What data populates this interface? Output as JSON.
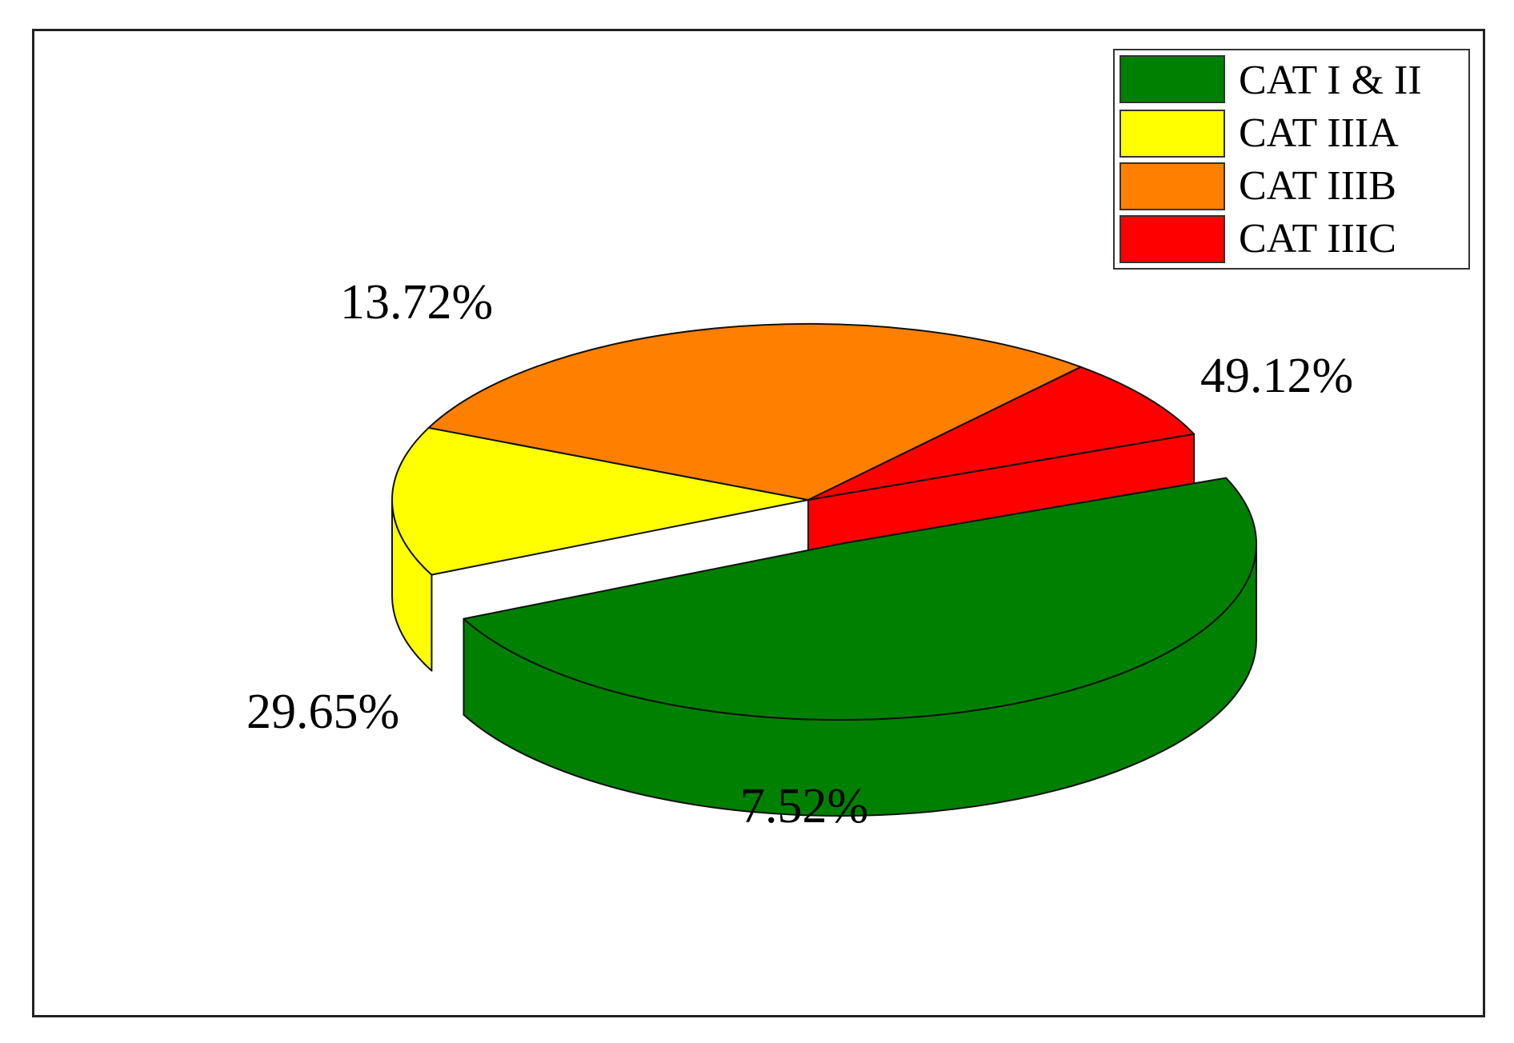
{
  "chart_data": {
    "type": "pie",
    "style": "3d-exploded",
    "slices": [
      {
        "label": "CAT I & II",
        "value": 49.12,
        "display": "49.12%",
        "color": "#008000",
        "exploded": true
      },
      {
        "label": "CAT IIIA",
        "value": 13.72,
        "display": "13.72%",
        "color": "#ffff00",
        "exploded": false
      },
      {
        "label": "CAT IIIB",
        "value": 29.65,
        "display": "29.65%",
        "color": "#ff8000",
        "exploded": false
      },
      {
        "label": "CAT IIIC",
        "value": 7.52,
        "display": "7.52%",
        "color": "#ff0000",
        "exploded": false
      }
    ],
    "legend_position": "top-right",
    "title": ""
  }
}
